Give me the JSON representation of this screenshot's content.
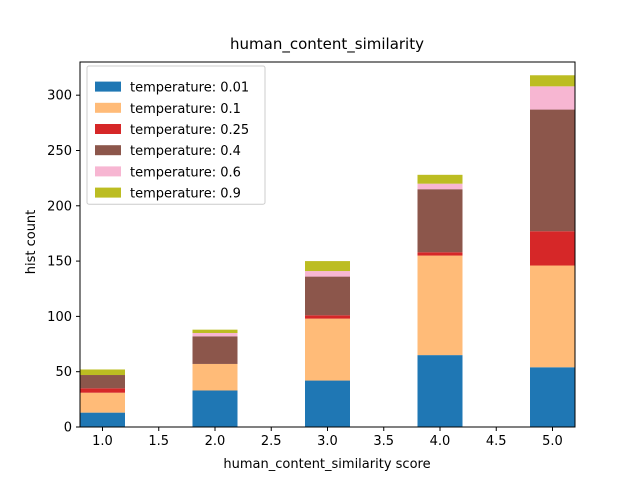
{
  "chart_data": {
    "type": "bar",
    "stacked": true,
    "title": "human_content_similarity",
    "xlabel": "human_content_similarity score",
    "ylabel": "hist count",
    "x": [
      1.0,
      2.0,
      3.0,
      4.0,
      5.0
    ],
    "bar_width": 0.4,
    "xlim": [
      0.8,
      5.2
    ],
    "ylim": [
      0,
      330
    ],
    "xticks": [
      1.0,
      1.5,
      2.0,
      2.5,
      3.0,
      3.5,
      4.0,
      4.5,
      5.0
    ],
    "xtick_labels": [
      "1.0",
      "1.5",
      "2.0",
      "2.5",
      "3.0",
      "3.5",
      "4.0",
      "4.5",
      "5.0"
    ],
    "yticks": [
      0,
      50,
      100,
      150,
      200,
      250,
      300
    ],
    "ytick_labels": [
      "0",
      "50",
      "100",
      "150",
      "200",
      "250",
      "300"
    ],
    "legend_position": "top-left",
    "series": [
      {
        "name": "temperature: 0.01",
        "color": "#1f77b4",
        "values": [
          13,
          33,
          42,
          65,
          54
        ]
      },
      {
        "name": "temperature: 0.1",
        "color": "#ffbb78",
        "values": [
          18,
          24,
          56,
          90,
          92
        ]
      },
      {
        "name": "temperature: 0.25",
        "color": "#d62728",
        "values": [
          4,
          0,
          3,
          3,
          31
        ]
      },
      {
        "name": "temperature: 0.4",
        "color": "#8c564b",
        "values": [
          12,
          25,
          35,
          57,
          110
        ]
      },
      {
        "name": "temperature: 0.6",
        "color": "#f7b6d2",
        "values": [
          0,
          3,
          5,
          5,
          21
        ]
      },
      {
        "name": "temperature: 0.9",
        "color": "#bcbd22",
        "values": [
          5,
          3,
          9,
          8,
          10
        ]
      }
    ]
  }
}
